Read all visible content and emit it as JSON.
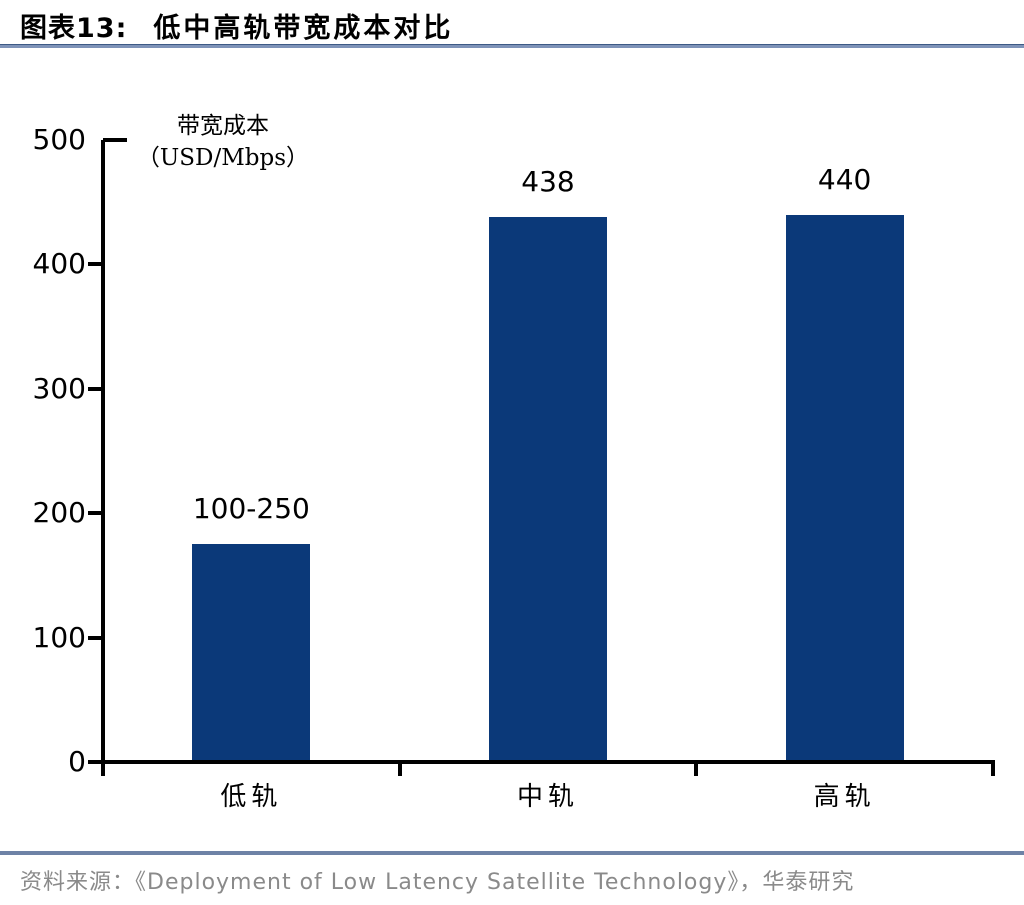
{
  "header": {
    "figure_label": "图表13:",
    "title": "低中高轨带宽成本对比"
  },
  "chart_data": {
    "type": "bar",
    "title": "低中高轨带宽成本对比",
    "categories": [
      "低轨",
      "中轨",
      "高轨"
    ],
    "values": [
      175,
      438,
      440
    ],
    "value_labels": [
      "100-250",
      "438",
      "440"
    ],
    "ylabel_lines": [
      "带宽成本",
      "（USD/Mbps）"
    ],
    "yticks": [
      0,
      100,
      200,
      300,
      400,
      500
    ],
    "ylim": [
      0,
      500
    ],
    "xlabel": "",
    "grid": false,
    "legend": "none",
    "bar_color": "#0b3979",
    "axis_color": "#000000"
  },
  "footer": {
    "source_prefix": "资料来源：",
    "source_text": "《Deployment of Low Latency Satellite Technology》，华泰研究"
  },
  "colors": {
    "title_rule": "#7e93b8",
    "footer_rule": "#6e82a6",
    "source_text": "#8a8a8a"
  }
}
